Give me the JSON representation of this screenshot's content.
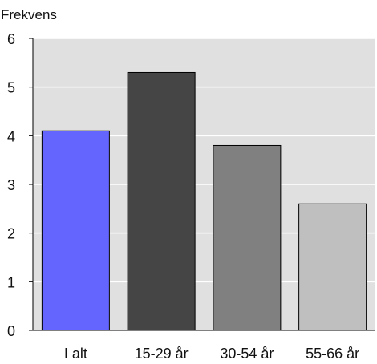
{
  "chart_data": {
    "type": "bar",
    "title": "",
    "xlabel": "",
    "ylabel": "Frekvens",
    "categories": [
      "I alt",
      "15-29 år",
      "30-54 år",
      "55-66 år"
    ],
    "values": [
      4.1,
      5.3,
      3.8,
      2.6
    ],
    "ylim": [
      0,
      6
    ],
    "yticks": [
      "0",
      "1",
      "2",
      "3",
      "4",
      "5",
      "6"
    ],
    "grid": true,
    "legend": "none",
    "colors": {
      "plot_background": "#e0e0e0",
      "gridline": "#ffffff",
      "axis": "#000000",
      "bar_outline": "#000000",
      "bars": [
        "#6464ff",
        "#454545",
        "#808080",
        "#bfbfbf"
      ]
    }
  }
}
